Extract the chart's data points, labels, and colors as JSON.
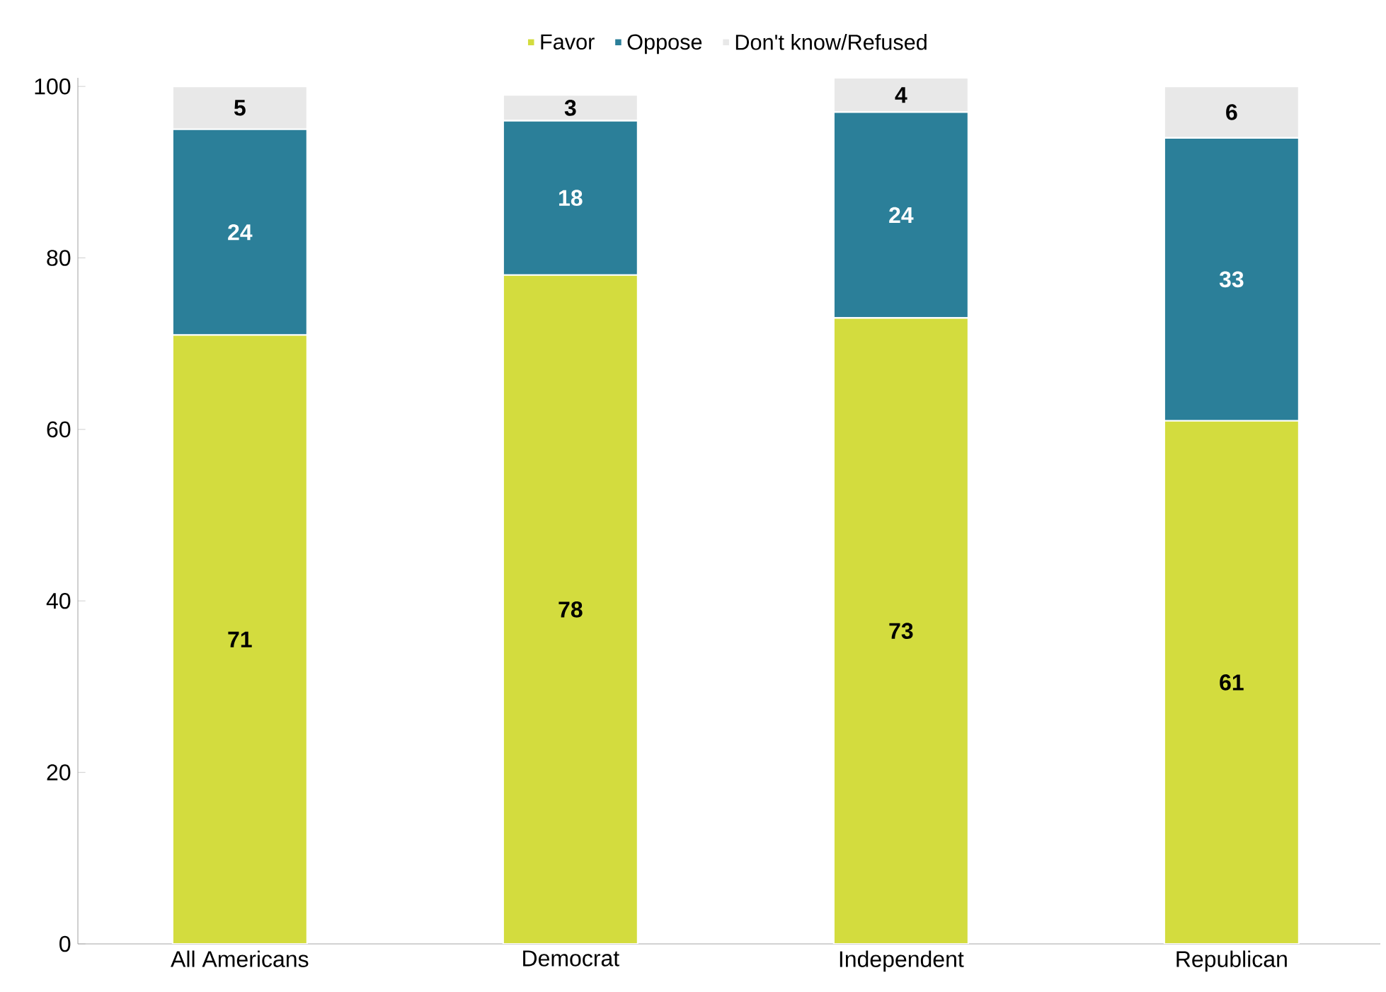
{
  "chart_data": {
    "type": "bar",
    "stacked": true,
    "data_labels": true,
    "legend": "top",
    "grid": false,
    "categories": [
      "All Americans",
      "Democrat",
      "Independent",
      "Republican"
    ],
    "series": [
      {
        "name": "Favor",
        "color": "#d3dc3e",
        "values": [
          71,
          78,
          73,
          61
        ]
      },
      {
        "name": "Oppose",
        "color": "#2b7f99",
        "values": [
          24,
          18,
          24,
          33
        ]
      },
      {
        "name": "Don't know/Refused",
        "color": "#e8e8e8",
        "values": [
          5,
          3,
          4,
          6
        ]
      }
    ],
    "ylim": [
      0,
      101
    ],
    "yticks": [
      0,
      20,
      40,
      60,
      80,
      100
    ]
  }
}
